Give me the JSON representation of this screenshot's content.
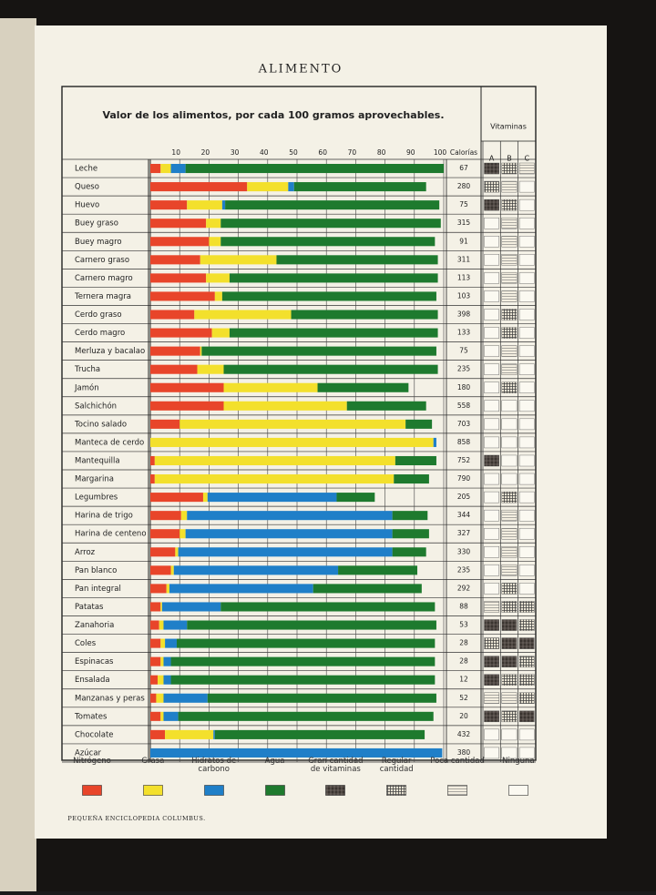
{
  "header": "ALIMENTO",
  "footer": "PEQUEÑA ENCICLOPEDIA COLUMBUS.",
  "chart_data": {
    "type": "bar",
    "title": "Valor de los alimentos, por cada 100 gramos aprovechables.",
    "categories": [
      "Leche",
      "Queso",
      "Huevo",
      "Buey graso",
      "Buey magro",
      "Carnero graso",
      "Carnero magro",
      "Ternera magra",
      "Cerdo graso",
      "Cerdo magro",
      "Merluza y bacalao",
      "Trucha",
      "Jamón",
      "Salchichón",
      "Tocino salado",
      "Manteca de cerdo",
      "Mantequilla",
      "Margarina",
      "Legumbres",
      "Harina de trigo",
      "Harina de centeno",
      "Arroz",
      "Pan blanco",
      "Pan integral",
      "Patatas",
      "Zanahoria",
      "Coles",
      "Espinacas",
      "Ensalada",
      "Manzanas y peras",
      "Tomates",
      "Chocolate",
      "Azúcar"
    ],
    "series": [
      {
        "name": "Nitrógeno",
        "color": "#e8452a",
        "values": [
          3.5,
          33,
          12.5,
          19,
          20,
          17,
          19,
          22,
          15,
          21,
          17,
          16,
          25,
          25,
          10,
          0,
          1.5,
          1.5,
          18,
          10.5,
          10,
          8.5,
          7,
          5.5,
          3.5,
          3,
          3.5,
          3.5,
          2.5,
          2,
          3.5,
          5,
          0
        ]
      },
      {
        "name": "Grasa",
        "color": "#f3e02c",
        "values": [
          3.5,
          14,
          12,
          5,
          4,
          26,
          8,
          2.5,
          33,
          6,
          0.5,
          9,
          32,
          42,
          77,
          96.5,
          82,
          81.5,
          1.5,
          2,
          2,
          1,
          1,
          1,
          0.5,
          1.5,
          1.5,
          1,
          2,
          2.5,
          1,
          16.5,
          0
        ]
      },
      {
        "name": "Hidratos de carbono",
        "color": "#1f7fc8",
        "values": [
          5,
          2,
          1,
          0,
          0,
          0,
          0,
          0,
          0,
          0,
          0,
          0,
          0,
          0,
          0,
          1,
          0,
          0,
          44,
          70,
          70.5,
          73,
          56,
          49,
          20,
          8,
          4,
          2.5,
          2.5,
          15,
          5,
          0.5,
          99.5
        ]
      },
      {
        "name": "Agua",
        "color": "#1e7a2e",
        "values": [
          88,
          45,
          73,
          75,
          73,
          55,
          71,
          73,
          50,
          71,
          80,
          73,
          31,
          27,
          9,
          0,
          14,
          12,
          13,
          12,
          12.5,
          11.5,
          27,
          37,
          73,
          85,
          88,
          90,
          90,
          78,
          87,
          71.5,
          0
        ]
      }
    ],
    "xlim": [
      0,
      100
    ],
    "xticks": [
      10,
      20,
      30,
      40,
      50,
      60,
      70,
      80,
      90,
      100
    ],
    "calories_label": "Calorías",
    "calories": [
      67,
      280,
      75,
      315,
      91,
      311,
      113,
      103,
      398,
      133,
      75,
      235,
      180,
      558,
      703,
      858,
      752,
      790,
      205,
      344,
      327,
      330,
      235,
      292,
      88,
      53,
      28,
      28,
      12,
      52,
      20,
      432,
      380
    ],
    "vitamins_label": "Vitaminas",
    "vitamin_columns": [
      "A",
      "B",
      "C"
    ],
    "vitamin_levels": [
      "Gran cantidad de vitaminas",
      "Regular cantidad",
      "Poca cantidad",
      "Ninguna"
    ],
    "vitamins": [
      [
        0,
        1,
        2
      ],
      [
        1,
        2,
        3
      ],
      [
        0,
        1,
        3
      ],
      [
        3,
        2,
        3
      ],
      [
        3,
        2,
        3
      ],
      [
        3,
        2,
        3
      ],
      [
        3,
        2,
        3
      ],
      [
        3,
        2,
        3
      ],
      [
        3,
        1,
        3
      ],
      [
        3,
        1,
        3
      ],
      [
        3,
        2,
        3
      ],
      [
        3,
        2,
        3
      ],
      [
        3,
        1,
        3
      ],
      [
        3,
        3,
        3
      ],
      [
        3,
        3,
        3
      ],
      [
        3,
        3,
        3
      ],
      [
        0,
        3,
        3
      ],
      [
        3,
        3,
        3
      ],
      [
        3,
        1,
        3
      ],
      [
        3,
        2,
        3
      ],
      [
        3,
        2,
        3
      ],
      [
        3,
        2,
        3
      ],
      [
        3,
        2,
        3
      ],
      [
        3,
        1,
        3
      ],
      [
        2,
        1,
        1
      ],
      [
        0,
        0,
        1
      ],
      [
        1,
        0,
        0
      ],
      [
        0,
        0,
        1
      ],
      [
        0,
        1,
        1
      ],
      [
        2,
        2,
        1
      ],
      [
        0,
        1,
        0
      ],
      [
        3,
        3,
        3
      ],
      [
        3,
        3,
        3
      ]
    ]
  }
}
